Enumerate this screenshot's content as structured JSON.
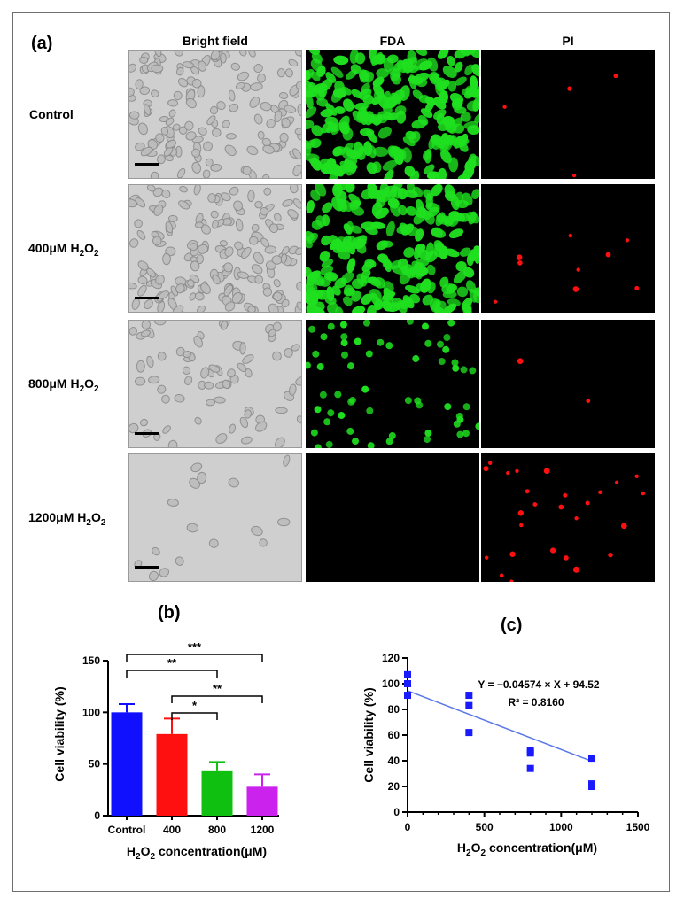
{
  "panel_a": {
    "letter": "(a)",
    "columns": [
      {
        "key": "bf",
        "label": "Bright field"
      },
      {
        "key": "fda",
        "label": "FDA"
      },
      {
        "key": "pi",
        "label": "PI"
      }
    ],
    "rows": [
      {
        "label": "Control",
        "sub": "",
        "tail": ""
      },
      {
        "label": "400μM H",
        "sub": "2",
        "tail": "O",
        "sub2": "2"
      },
      {
        "label": "800μM H",
        "sub": "2",
        "tail": "O",
        "sub2": "2"
      },
      {
        "label": "1200μM H",
        "sub": "2",
        "tail": "O",
        "sub2": "2"
      }
    ],
    "colors": {
      "fda": "#1fe01f",
      "pi": "#ff1010",
      "bf": "#cfcfcf"
    }
  },
  "chart_data": [
    {
      "panel": "(b)",
      "type": "bar",
      "categories": [
        "Control",
        "400",
        "800",
        "1200"
      ],
      "values": [
        100,
        79,
        43,
        28
      ],
      "errors": [
        8,
        15,
        9,
        12
      ],
      "colors": [
        "#1010ff",
        "#ff1010",
        "#10c010",
        "#cc22ee"
      ],
      "ylabel": "Cell viability (%)",
      "xlabel_parts": [
        "H",
        "2",
        "O",
        "2",
        " concentration(μM)"
      ],
      "ylim": [
        0,
        150
      ],
      "yticks": [
        0,
        50,
        100,
        150
      ],
      "significance": [
        {
          "from": 0,
          "to": 3,
          "label": "***"
        },
        {
          "from": 0,
          "to": 2,
          "label": "**"
        },
        {
          "from": 1,
          "to": 3,
          "label": "**"
        },
        {
          "from": 1,
          "to": 2,
          "label": "*"
        }
      ]
    },
    {
      "panel": "(c)",
      "type": "scatter",
      "points": [
        {
          "x": 0,
          "y": 107
        },
        {
          "x": 0,
          "y": 100
        },
        {
          "x": 0,
          "y": 91
        },
        {
          "x": 400,
          "y": 91
        },
        {
          "x": 400,
          "y": 83
        },
        {
          "x": 400,
          "y": 62
        },
        {
          "x": 800,
          "y": 48
        },
        {
          "x": 800,
          "y": 46
        },
        {
          "x": 800,
          "y": 34
        },
        {
          "x": 1200,
          "y": 42
        },
        {
          "x": 1200,
          "y": 22
        },
        {
          "x": 1200,
          "y": 20
        }
      ],
      "fit": {
        "slope": -0.04574,
        "intercept": 94.52,
        "x_range": [
          0,
          1200
        ]
      },
      "equation": "Y = −0.04574 × X + 94.52",
      "r2": "R² = 0.8160",
      "ylabel": "Cell viability (%)",
      "xlabel_parts": [
        "H",
        "2",
        "O",
        "2",
        " concentration(μM)"
      ],
      "xlim": [
        0,
        1500
      ],
      "ylim": [
        0,
        120
      ],
      "xticks": [
        0,
        500,
        1000,
        1500
      ],
      "yticks": [
        0,
        20,
        40,
        60,
        80,
        100,
        120
      ],
      "point_color": "#1a1aff",
      "line_color": "#5a78e6"
    }
  ]
}
